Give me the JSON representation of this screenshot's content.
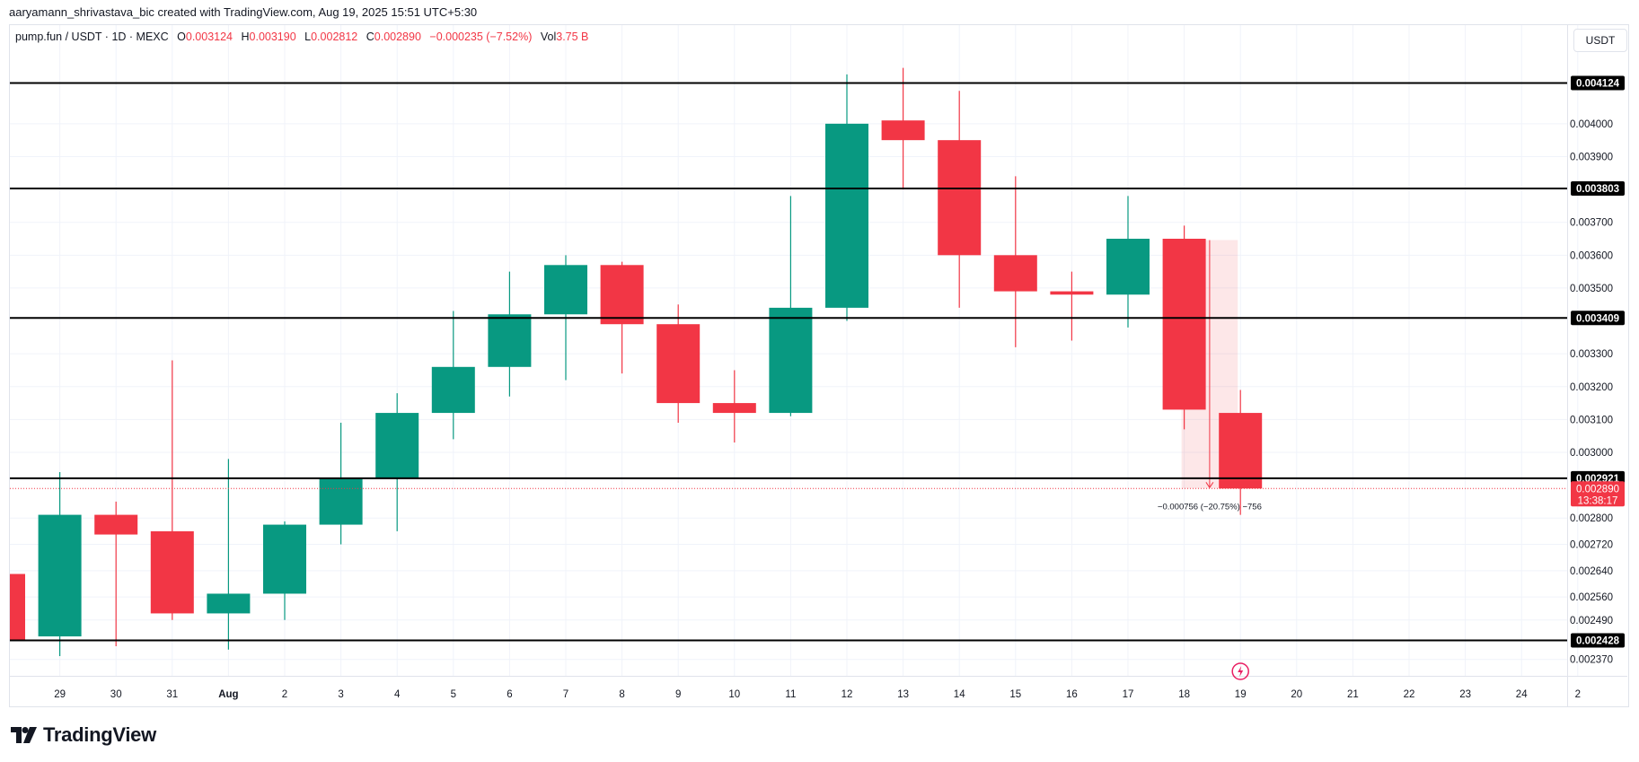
{
  "header": {
    "attribution": "aaryamann_shrivastava_bic created with TradingView.com, Aug 19, 2025 15:51 UTC+5:30"
  },
  "legend": {
    "symbol": "pump.fun / USDT · 1D · MEXC",
    "o_key": "O",
    "o": "0.003124",
    "h_key": "H",
    "h": "0.003190",
    "l_key": "L",
    "l": "0.002812",
    "c_key": "C",
    "c": "0.002890",
    "change": "−0.000235 (−7.52%)",
    "vol_key": "Vol",
    "vol": "3.75 B"
  },
  "currency_button": "USDT",
  "brand": {
    "name": "TradingView"
  },
  "colors": {
    "up": "#089981",
    "down": "#f23645",
    "level_line": "#000000",
    "measure_fill": "#f23645"
  },
  "chart_data": {
    "type": "candlestick",
    "price_axis": {
      "ticks": [
        "0.002370",
        "0.002490",
        "0.002560",
        "0.002640",
        "0.002720",
        "0.002800",
        "0.003000",
        "0.003100",
        "0.003200",
        "0.003300",
        "0.003500",
        "0.003600",
        "0.003700",
        "0.003900",
        "0.004000"
      ],
      "current_price": "0.002890",
      "countdown": "13:38:17"
    },
    "time_axis": {
      "labels": [
        {
          "text": "29",
          "slot": 1
        },
        {
          "text": "30",
          "slot": 2
        },
        {
          "text": "31",
          "slot": 3
        },
        {
          "text": "Aug",
          "slot": 4
        },
        {
          "text": "2",
          "slot": 5
        },
        {
          "text": "3",
          "slot": 6
        },
        {
          "text": "4",
          "slot": 7
        },
        {
          "text": "5",
          "slot": 8
        },
        {
          "text": "6",
          "slot": 9
        },
        {
          "text": "7",
          "slot": 10
        },
        {
          "text": "8",
          "slot": 11
        },
        {
          "text": "9",
          "slot": 12
        },
        {
          "text": "10",
          "slot": 13
        },
        {
          "text": "11",
          "slot": 14
        },
        {
          "text": "12",
          "slot": 15
        },
        {
          "text": "13",
          "slot": 16
        },
        {
          "text": "14",
          "slot": 17
        },
        {
          "text": "15",
          "slot": 18
        },
        {
          "text": "16",
          "slot": 19
        },
        {
          "text": "17",
          "slot": 20
        },
        {
          "text": "18",
          "slot": 21
        },
        {
          "text": "19",
          "slot": 22
        },
        {
          "text": "20",
          "slot": 23
        },
        {
          "text": "21",
          "slot": 24
        },
        {
          "text": "22",
          "slot": 25
        },
        {
          "text": "23",
          "slot": 26
        },
        {
          "text": "24",
          "slot": 27
        },
        {
          "text": "2",
          "slot": 28
        }
      ]
    },
    "candles": [
      {
        "slot": 0,
        "o": 0.00263,
        "h": 0.00263,
        "l": 0.00243,
        "c": 0.00243
      },
      {
        "slot": 1,
        "o": 0.00244,
        "h": 0.00294,
        "l": 0.00238,
        "c": 0.00281
      },
      {
        "slot": 2,
        "o": 0.00281,
        "h": 0.00285,
        "l": 0.00241,
        "c": 0.00275
      },
      {
        "slot": 3,
        "o": 0.00276,
        "h": 0.00328,
        "l": 0.00249,
        "c": 0.00251
      },
      {
        "slot": 4,
        "o": 0.00251,
        "h": 0.00298,
        "l": 0.0024,
        "c": 0.00257
      },
      {
        "slot": 5,
        "o": 0.00257,
        "h": 0.00279,
        "l": 0.00249,
        "c": 0.00278
      },
      {
        "slot": 6,
        "o": 0.00278,
        "h": 0.00309,
        "l": 0.00272,
        "c": 0.00292
      },
      {
        "slot": 7,
        "o": 0.00292,
        "h": 0.00318,
        "l": 0.00276,
        "c": 0.00312
      },
      {
        "slot": 8,
        "o": 0.00312,
        "h": 0.00343,
        "l": 0.00304,
        "c": 0.00326
      },
      {
        "slot": 9,
        "o": 0.00326,
        "h": 0.00355,
        "l": 0.00317,
        "c": 0.00342
      },
      {
        "slot": 10,
        "o": 0.00342,
        "h": 0.0036,
        "l": 0.00322,
        "c": 0.00357
      },
      {
        "slot": 11,
        "o": 0.00357,
        "h": 0.00358,
        "l": 0.00324,
        "c": 0.00339
      },
      {
        "slot": 12,
        "o": 0.00339,
        "h": 0.00345,
        "l": 0.00309,
        "c": 0.00315
      },
      {
        "slot": 13,
        "o": 0.00315,
        "h": 0.00325,
        "l": 0.00303,
        "c": 0.00312
      },
      {
        "slot": 14,
        "o": 0.00312,
        "h": 0.00378,
        "l": 0.00311,
        "c": 0.00344
      },
      {
        "slot": 15,
        "o": 0.00344,
        "h": 0.00415,
        "l": 0.0034,
        "c": 0.004
      },
      {
        "slot": 16,
        "o": 0.00401,
        "h": 0.00417,
        "l": 0.0038,
        "c": 0.00395
      },
      {
        "slot": 17,
        "o": 0.00395,
        "h": 0.0041,
        "l": 0.00344,
        "c": 0.0036
      },
      {
        "slot": 18,
        "o": 0.0036,
        "h": 0.00384,
        "l": 0.00332,
        "c": 0.00349
      },
      {
        "slot": 19,
        "o": 0.00349,
        "h": 0.00355,
        "l": 0.00334,
        "c": 0.00348
      },
      {
        "slot": 20,
        "o": 0.00348,
        "h": 0.00378,
        "l": 0.00338,
        "c": 0.00365
      },
      {
        "slot": 21,
        "o": 0.00365,
        "h": 0.00369,
        "l": 0.00307,
        "c": 0.00313
      },
      {
        "slot": 22,
        "o": 0.00312,
        "h": 0.00319,
        "l": 0.00281,
        "c": 0.00289
      }
    ],
    "levels": [
      {
        "price": 0.004124,
        "label": "0.004124"
      },
      {
        "price": 0.003803,
        "label": "0.003803"
      },
      {
        "price": 0.003409,
        "label": "0.003409"
      },
      {
        "price": 0.002921,
        "label": "0.002921"
      },
      {
        "price": 0.002428,
        "label": "0.002428"
      }
    ],
    "measure": {
      "from_slot": 21,
      "to_slot": 22,
      "top": 0.003646,
      "bottom": 0.00289,
      "label": "−0.000756 (−20.75%) −756"
    },
    "grid": true
  }
}
